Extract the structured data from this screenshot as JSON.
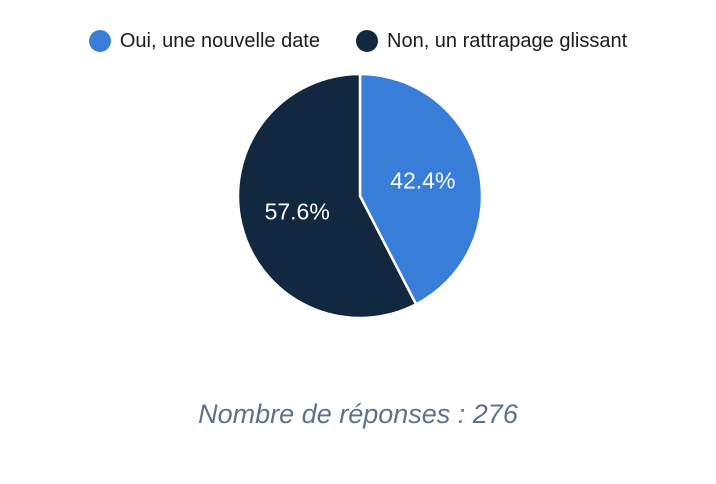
{
  "chart_data": {
    "type": "pie",
    "categories": [
      "Oui, une nouvelle date",
      "Non, un rattrapage glissant"
    ],
    "values": [
      42.4,
      57.6
    ],
    "value_labels": [
      "42.4%",
      "57.6%"
    ],
    "colors": [
      "#387ed9",
      "#122740"
    ],
    "start_angle_deg": 0,
    "direction": "clockwise",
    "legend_position": "top",
    "slice_border_color": "#ffffff",
    "caption": "Nombre de réponses : 276",
    "total_responses": 276
  },
  "legend": {
    "items": [
      {
        "label": "Oui, une nouvelle date",
        "color": "#387ed9"
      },
      {
        "label": "Non, un rattrapage glissant",
        "color": "#122740"
      }
    ]
  },
  "styles": {
    "background": "#ffffff",
    "legend_text_color": "#1a1c1f",
    "slice_label_color": "#ffffff",
    "caption_color": "#5e7187"
  }
}
